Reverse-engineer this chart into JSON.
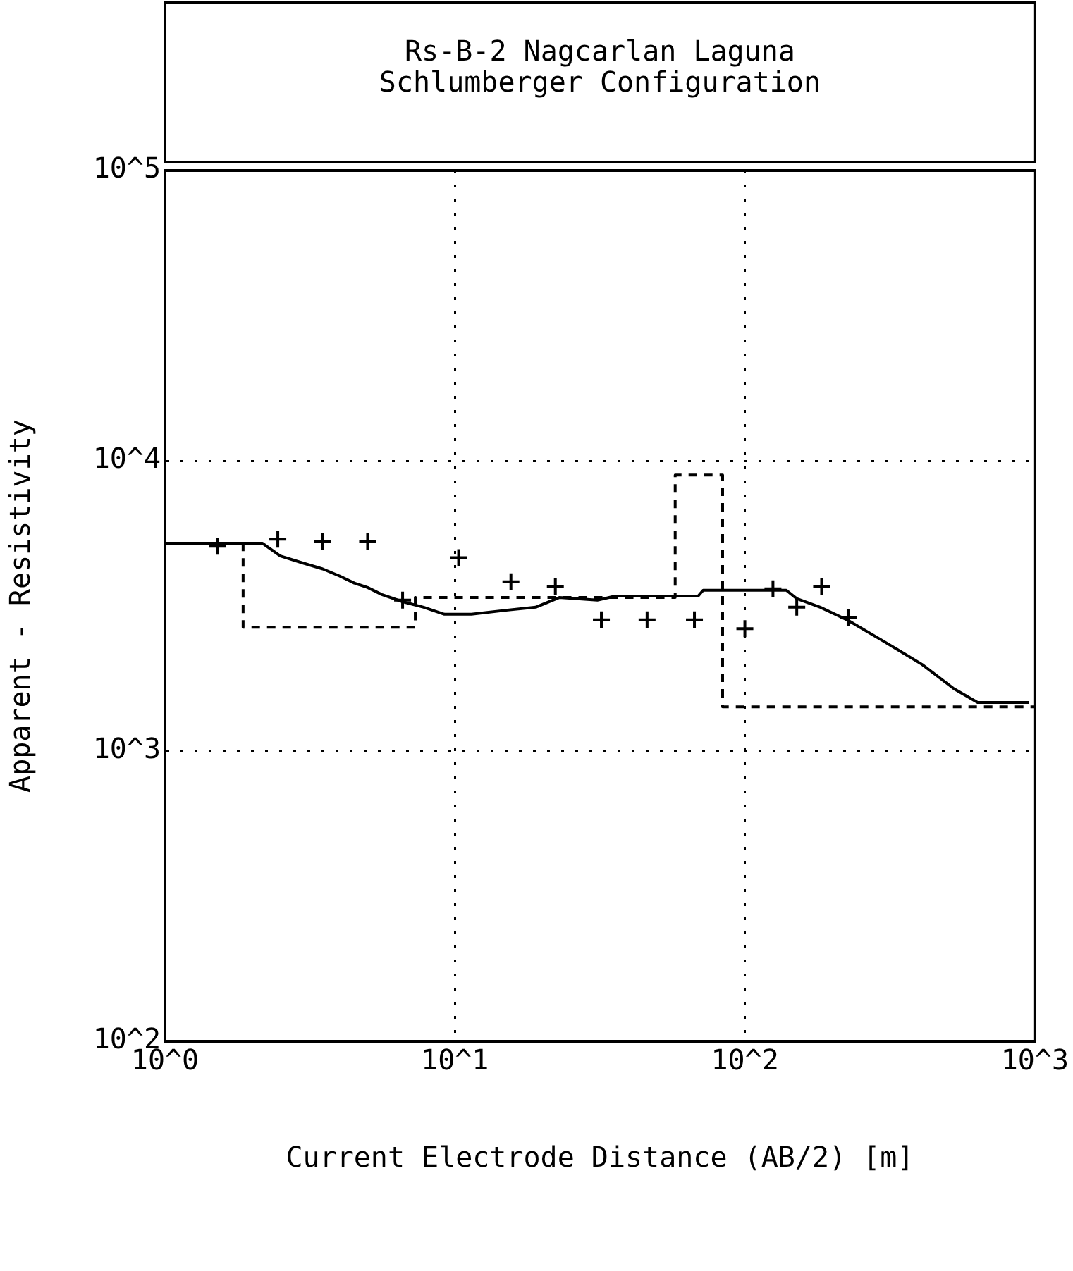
{
  "chart_data": {
    "type": "line",
    "title": "Rs-B-2 Nagcarlan Laguna\nSchlumberger Configuration",
    "xlabel": "Current Electrode Distance (AB/2) [m]",
    "ylabel": "Apparent - Resistivity",
    "log": "xy",
    "grid": true,
    "legend": false,
    "xlim": [
      1,
      1000
    ],
    "xticks": [
      {
        "value": 1,
        "label": "10^0"
      },
      {
        "value": 10,
        "label": "10^1"
      },
      {
        "value": 100,
        "label": "10^2"
      },
      {
        "value": 1000,
        "label": "10^3"
      }
    ],
    "ylim": [
      100,
      100000
    ],
    "yticks": [
      {
        "value": 100,
        "label": "10^2"
      },
      {
        "value": 1000,
        "label": "10^3"
      },
      {
        "value": 10000,
        "label": "10^4"
      },
      {
        "value": 100000,
        "label": "10^5"
      }
    ],
    "series": [
      {
        "type": "scatter",
        "color": "#000000",
        "marker": "cross",
        "x": [
          1.52,
          2.45,
          3.5,
          5.0,
          6.6,
          10.3,
          15.6,
          22.2,
          32,
          46,
          67,
          100,
          125,
          151,
          184,
          227
        ],
        "values": [
          5080,
          5370,
          5260,
          5260,
          3310,
          4640,
          3830,
          3700,
          2830,
          2830,
          2830,
          2640,
          3620,
          3130,
          3700,
          2890
        ]
      },
      {
        "type": "line",
        "color": "#000000",
        "marker": "none",
        "line_style": "solid",
        "x": [
          1,
          2.17,
          2.5,
          3.0,
          3.5,
          4.0,
          4.5,
          5.0,
          5.6,
          6.6,
          7.8,
          9.2,
          11.4,
          15.2,
          19,
          22.9,
          31,
          35.7,
          69,
          71.8,
          139,
          151,
          182,
          227,
          303,
          408,
          526,
          635,
          957
        ],
        "values": [
          5200,
          5200,
          4700,
          4440,
          4240,
          4010,
          3790,
          3660,
          3460,
          3270,
          3130,
          2960,
          2960,
          3060,
          3130,
          3380,
          3310,
          3420,
          3420,
          3580,
          3580,
          3350,
          3130,
          2820,
          2380,
          1990,
          1640,
          1470,
          1470
        ]
      },
      {
        "type": "step",
        "color": "#000000",
        "marker": "none",
        "line_style": "dashed",
        "x": [
          1,
          1.86,
          7.3,
          57.5,
          83.8,
          1000
        ],
        "values": [
          5200,
          2670,
          3380,
          8930,
          1420,
          1420
        ]
      }
    ]
  }
}
